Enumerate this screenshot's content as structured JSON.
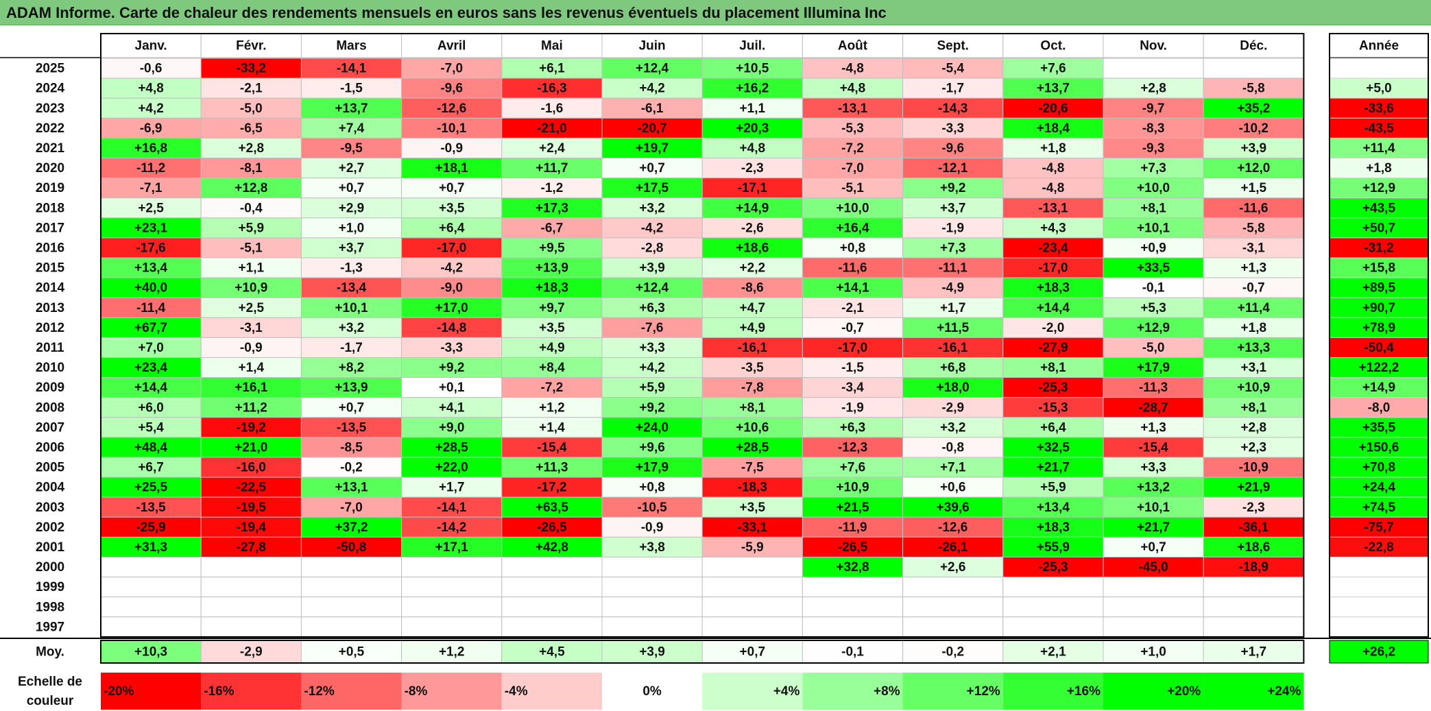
{
  "title": "ADAM Informe. Carte de chaleur des rendements mensuels en euros sans les revenus éventuels du placement Illumina Inc",
  "chart_data": {
    "type": "heatmap",
    "months": [
      "Janv.",
      "Févr.",
      "Mars",
      "Avril",
      "Mai",
      "Juin",
      "Juil.",
      "Août",
      "Sept.",
      "Oct.",
      "Nov.",
      "Déc."
    ],
    "year_header": "Année",
    "rows": [
      {
        "year": "2025",
        "months": [
          "-0,6",
          "-33,2",
          "-14,1",
          "-7,0",
          "+6,1",
          "+12,4",
          "+10,5",
          "-4,8",
          "-5,4",
          "+7,6",
          "",
          ""
        ],
        "annual": ""
      },
      {
        "year": "2024",
        "months": [
          "+4,8",
          "-2,1",
          "-1,5",
          "-9,6",
          "-16,3",
          "+4,2",
          "+16,2",
          "+4,8",
          "-1,7",
          "+13,7",
          "+2,8",
          "-5,8"
        ],
        "annual": "+5,0"
      },
      {
        "year": "2023",
        "months": [
          "+4,2",
          "-5,0",
          "+13,7",
          "-12,6",
          "-1,6",
          "-6,1",
          "+1,1",
          "-13,1",
          "-14,3",
          "-20,6",
          "-9,7",
          "+35,2"
        ],
        "annual": "-33,6"
      },
      {
        "year": "2022",
        "months": [
          "-6,9",
          "-6,5",
          "+7,4",
          "-10,1",
          "-21,0",
          "-20,7",
          "+20,3",
          "-5,3",
          "-3,3",
          "+18,4",
          "-8,3",
          "-10,2"
        ],
        "annual": "-43,5"
      },
      {
        "year": "2021",
        "months": [
          "+16,8",
          "+2,8",
          "-9,5",
          "-0,9",
          "+2,4",
          "+19,7",
          "+4,8",
          "-7,2",
          "-9,6",
          "+1,8",
          "-9,3",
          "+3,9"
        ],
        "annual": "+11,4"
      },
      {
        "year": "2020",
        "months": [
          "-11,2",
          "-8,1",
          "+2,7",
          "+18,1",
          "+11,7",
          "+0,7",
          "-2,3",
          "-7,0",
          "-12,1",
          "-4,8",
          "+7,3",
          "+12,0"
        ],
        "annual": "+1,8"
      },
      {
        "year": "2019",
        "months": [
          "-7,1",
          "+12,8",
          "+0,7",
          "+0,7",
          "-1,2",
          "+17,5",
          "-17,1",
          "-5,1",
          "+9,2",
          "-4,8",
          "+10,0",
          "+1,5"
        ],
        "annual": "+12,9"
      },
      {
        "year": "2018",
        "months": [
          "+2,5",
          "-0,4",
          "+2,9",
          "+3,5",
          "+17,3",
          "+3,2",
          "+14,9",
          "+10,0",
          "+3,7",
          "-13,1",
          "+8,1",
          "-11,6"
        ],
        "annual": "+43,5"
      },
      {
        "year": "2017",
        "months": [
          "+23,1",
          "+5,9",
          "+1,0",
          "+6,4",
          "-6,7",
          "-4,2",
          "-2,6",
          "+16,4",
          "-1,9",
          "+4,3",
          "+10,1",
          "-5,8"
        ],
        "annual": "+50,7"
      },
      {
        "year": "2016",
        "months": [
          "-17,6",
          "-5,1",
          "+3,7",
          "-17,0",
          "+9,5",
          "-2,8",
          "+18,6",
          "+0,8",
          "+7,3",
          "-23,4",
          "+0,9",
          "-3,1"
        ],
        "annual": "-31,2"
      },
      {
        "year": "2015",
        "months": [
          "+13,4",
          "+1,1",
          "-1,3",
          "-4,2",
          "+13,9",
          "+3,9",
          "+2,2",
          "-11,6",
          "-11,1",
          "-17,0",
          "+33,5",
          "+1,3"
        ],
        "annual": "+15,8"
      },
      {
        "year": "2014",
        "months": [
          "+40,0",
          "+10,9",
          "-13,4",
          "-9,0",
          "+18,3",
          "+12,4",
          "-8,6",
          "+14,1",
          "-4,9",
          "+18,3",
          "-0,1",
          "-0,7"
        ],
        "annual": "+89,5"
      },
      {
        "year": "2013",
        "months": [
          "-11,4",
          "+2,5",
          "+10,1",
          "+17,0",
          "+9,7",
          "+6,3",
          "+4,7",
          "-2,1",
          "+1,7",
          "+14,4",
          "+5,3",
          "+11,4"
        ],
        "annual": "+90,7"
      },
      {
        "year": "2012",
        "months": [
          "+67,7",
          "-3,1",
          "+3,2",
          "-14,8",
          "+3,5",
          "-7,6",
          "+4,9",
          "-0,7",
          "+11,5",
          "-2,0",
          "+12,9",
          "+1,8"
        ],
        "annual": "+78,9"
      },
      {
        "year": "2011",
        "months": [
          "+7,0",
          "-0,9",
          "-1,7",
          "-3,3",
          "+4,9",
          "+3,3",
          "-16,1",
          "-17,0",
          "-16,1",
          "-27,9",
          "-5,0",
          "+13,3"
        ],
        "annual": "-50,4"
      },
      {
        "year": "2010",
        "months": [
          "+23,4",
          "+1,4",
          "+8,2",
          "+9,2",
          "+8,4",
          "+4,2",
          "-3,5",
          "-1,5",
          "+6,8",
          "+8,1",
          "+17,9",
          "+3,1"
        ],
        "annual": "+122,2"
      },
      {
        "year": "2009",
        "months": [
          "+14,4",
          "+16,1",
          "+13,9",
          "+0,1",
          "-7,2",
          "+5,9",
          "-7,8",
          "-3,4",
          "+18,0",
          "-25,3",
          "-11,3",
          "+10,9"
        ],
        "annual": "+14,9"
      },
      {
        "year": "2008",
        "months": [
          "+6,0",
          "+11,2",
          "+0,7",
          "+4,1",
          "+1,2",
          "+9,2",
          "+8,1",
          "-1,9",
          "-2,9",
          "-15,3",
          "-28,7",
          "+8,1"
        ],
        "annual": "-8,0"
      },
      {
        "year": "2007",
        "months": [
          "+5,4",
          "-19,2",
          "-13,5",
          "+9,0",
          "+1,4",
          "+24,0",
          "+10,6",
          "+6,3",
          "+3,2",
          "+6,4",
          "+1,3",
          "+2,8"
        ],
        "annual": "+35,5"
      },
      {
        "year": "2006",
        "months": [
          "+48,4",
          "+21,0",
          "-8,5",
          "+28,5",
          "-15,4",
          "+9,6",
          "+28,5",
          "-12,3",
          "-0,8",
          "+32,5",
          "-15,4",
          "+2,3"
        ],
        "annual": "+150,6"
      },
      {
        "year": "2005",
        "months": [
          "+6,7",
          "-16,0",
          "-0,2",
          "+22,0",
          "+11,3",
          "+17,9",
          "-7,5",
          "+7,6",
          "+7,1",
          "+21,7",
          "+3,3",
          "-10,9"
        ],
        "annual": "+70,8"
      },
      {
        "year": "2004",
        "months": [
          "+25,5",
          "-22,5",
          "+13,1",
          "+1,7",
          "-17,2",
          "+0,8",
          "-18,3",
          "+10,9",
          "+0,6",
          "+5,9",
          "+13,2",
          "+21,9"
        ],
        "annual": "+24,4"
      },
      {
        "year": "2003",
        "months": [
          "-13,5",
          "-19,5",
          "-7,0",
          "-14,1",
          "+63,5",
          "-10,5",
          "+3,5",
          "+21,5",
          "+39,6",
          "+13,4",
          "+10,1",
          "-2,3"
        ],
        "annual": "+74,5"
      },
      {
        "year": "2002",
        "months": [
          "-25,9",
          "-19,4",
          "+37,2",
          "-14,2",
          "-26,5",
          "-0,9",
          "-33,1",
          "-11,9",
          "-12,6",
          "+18,3",
          "+21,7",
          "-36,1"
        ],
        "annual": "-75,7"
      },
      {
        "year": "2001",
        "months": [
          "+31,3",
          "-27,8",
          "-50,8",
          "+17,1",
          "+42,8",
          "+3,8",
          "-5,9",
          "-26,5",
          "-26,1",
          "+55,9",
          "+0,7",
          "+18,6"
        ],
        "annual": "-22,8"
      },
      {
        "year": "2000",
        "months": [
          "",
          "",
          "",
          "",
          "",
          "",
          "",
          "+32,8",
          "+2,6",
          "-25,3",
          "-45,0",
          "-18,9"
        ],
        "annual": ""
      },
      {
        "year": "1999",
        "months": [
          "",
          "",
          "",
          "",
          "",
          "",
          "",
          "",
          "",
          "",
          "",
          ""
        ],
        "annual": ""
      },
      {
        "year": "1998",
        "months": [
          "",
          "",
          "",
          "",
          "",
          "",
          "",
          "",
          "",
          "",
          "",
          ""
        ],
        "annual": ""
      },
      {
        "year": "1997",
        "months": [
          "",
          "",
          "",
          "",
          "",
          "",
          "",
          "",
          "",
          "",
          "",
          ""
        ],
        "annual": ""
      }
    ],
    "average": {
      "label": "Moy.",
      "months": [
        "+10,3",
        "-2,9",
        "+0,5",
        "+1,2",
        "+4,5",
        "+3,9",
        "+0,7",
        "-0,1",
        "-0,2",
        "+2,1",
        "+1,0",
        "+1,7"
      ],
      "annual": "+26,2"
    },
    "scale": {
      "label_line1": "Echelle de",
      "label_line2": "couleur",
      "steps": [
        "-20%",
        "-16%",
        "-12%",
        "-8%",
        "-4%",
        "0%",
        "+4%",
        "+8%",
        "+12%",
        "+16%",
        "+20%",
        "+24%"
      ],
      "step_values": [
        -20,
        -16,
        -12,
        -8,
        -4,
        0,
        4,
        8,
        12,
        16,
        20,
        24
      ]
    },
    "colors": {
      "negative_max": "#ff0000",
      "neutral": "#ffffff",
      "positive_max": "#00ff00",
      "title_bar": "#7fc97f"
    }
  }
}
